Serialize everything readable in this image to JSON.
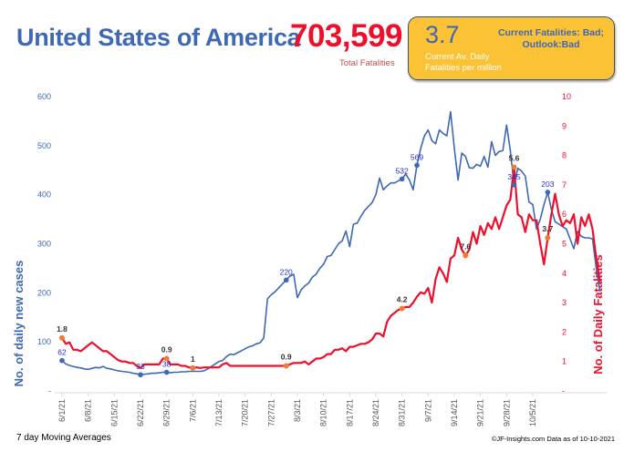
{
  "header": {
    "country": "United States of America",
    "total_fatalities": "703,599",
    "total_fatalities_label": "Total Fatalities"
  },
  "status_box": {
    "value": "3.7",
    "caption_line1": "Current Av. Daily",
    "caption_line2": "Fatalities per million",
    "outlook_line1": "Current Fatalities: Bad;",
    "outlook_line2": "Outlook:Bad"
  },
  "footer": {
    "left": "7 day Moving Averages",
    "right": "©JF-Insights.com  Data as of 10-10-2021"
  },
  "colors": {
    "cases": "#3d68b5",
    "fatalities": "#ee0f2c",
    "fatality_marker": "#ed7d31",
    "title": "#3d68b5",
    "total": "#ee0f2c",
    "status_bg": "#fcc236"
  },
  "chart_data": {
    "type": "line",
    "title": "",
    "x_start": "6/1/21",
    "x_end": "10/9/21",
    "x_tick_labels": [
      "6/1/21",
      "6/8/21",
      "6/15/21",
      "6/22/21",
      "6/29/21",
      "7/6/21",
      "7/13/21",
      "7/20/21",
      "7/27/21",
      "8/3/21",
      "8/10/21",
      "8/17/21",
      "8/24/21",
      "8/31/21",
      "9/7/21",
      "9/14/21",
      "9/21/21",
      "9/28/21",
      "10/5/21"
    ],
    "ylabel_left": "No. of daily new  cases",
    "ylabel_right": "No. of Daily Fatalities",
    "ylim_left": [
      0,
      600
    ],
    "ylim_right": [
      0,
      10
    ],
    "y_ticks_left": [
      "-",
      "100",
      "200",
      "300",
      "400",
      "500",
      "600"
    ],
    "y_ticks_right": [
      "-",
      "1",
      "2",
      "3",
      "4",
      "5",
      "6",
      "7",
      "8",
      "9",
      "10"
    ],
    "grid": false,
    "series": [
      {
        "name": "Daily new cases (7-day avg)",
        "axis": "left",
        "values": [
          62,
          55,
          52,
          50,
          48,
          47,
          45,
          44,
          46,
          48,
          47,
          50,
          46,
          45,
          43,
          41,
          40,
          39,
          38,
          36,
          35,
          33,
          34,
          35,
          36,
          36,
          37,
          38,
          38,
          37,
          38,
          38,
          39,
          39,
          40,
          40,
          40,
          40,
          41,
          45,
          50,
          55,
          60,
          62,
          70,
          75,
          74,
          78,
          82,
          86,
          90,
          92,
          96,
          98,
          108,
          188,
          196,
          202,
          210,
          218,
          226,
          234,
          238,
          190,
          206,
          214,
          220,
          232,
          238,
          250,
          258,
          274,
          276,
          288,
          300,
          306,
          326,
          294,
          340,
          342,
          356,
          368,
          376,
          384,
          400,
          434,
          410,
          418,
          424,
          424,
          428,
          432,
          442,
          430,
          410,
          460,
          494,
          520,
          532,
          510,
          504,
          532,
          525,
          520,
          569,
          495,
          430,
          485,
          478,
          455,
          454,
          462,
          458,
          478,
          456,
          508,
          480,
          488,
          490,
          542,
          490,
          420,
          454,
          448,
          438,
          385,
          380,
          330,
          350,
          380,
          405,
          370,
          345,
          340,
          335,
          330,
          310,
          290,
          325,
          315,
          312,
          312,
          310,
          250,
          203
        ],
        "annotations": [
          {
            "date": "6/1/21",
            "label": "62"
          },
          {
            "date": "6/22/21",
            "label": "33"
          },
          {
            "date": "6/29/21",
            "label": "38"
          },
          {
            "date": "7/31/21",
            "label": "220"
          },
          {
            "date": "8/31/21",
            "label": "532"
          },
          {
            "date": "9/4/21",
            "label": "569"
          },
          {
            "date": "9/30/21",
            "label": "345"
          },
          {
            "date": "10/9/21",
            "label": "203"
          }
        ]
      },
      {
        "name": "Daily fatalities (7-day avg)",
        "axis": "right",
        "values": [
          1.8,
          1.6,
          1.65,
          1.4,
          1.4,
          1.35,
          1.45,
          1.55,
          1.65,
          1.55,
          1.45,
          1.35,
          1.35,
          1.25,
          1.15,
          1.05,
          1.0,
          1.0,
          0.95,
          0.95,
          0.85,
          0.78,
          0.9,
          0.9,
          0.9,
          0.9,
          0.9,
          1.1,
          1.1,
          0.9,
          0.9,
          0.9,
          0.85,
          0.85,
          0.8,
          0.78,
          0.8,
          0.78,
          0.8,
          0.8,
          0.8,
          0.8,
          0.8,
          0.9,
          0.95,
          0.85,
          0.85,
          0.85,
          0.85,
          0.85,
          0.85,
          0.85,
          0.85,
          0.85,
          0.85,
          0.85,
          0.85,
          0.85,
          0.85,
          0.85,
          0.85,
          0.9,
          0.95,
          0.95,
          0.95,
          1.0,
          0.9,
          1.0,
          1.1,
          1.1,
          1.15,
          1.25,
          1.25,
          1.4,
          1.4,
          1.45,
          1.35,
          1.5,
          1.5,
          1.55,
          1.6,
          1.6,
          1.65,
          1.75,
          1.95,
          1.95,
          1.85,
          2.35,
          2.55,
          2.65,
          2.75,
          2.8,
          2.85,
          2.85,
          3.0,
          3.2,
          3.35,
          3.3,
          3.5,
          3.0,
          3.8,
          4.2,
          4.0,
          3.7,
          4.5,
          4.6,
          5.2,
          4.8,
          4.6,
          4.8,
          5.4,
          5.0,
          5.6,
          5.3,
          5.7,
          5.5,
          5.9,
          5.5,
          5.9,
          6.3,
          6.5,
          7.6,
          6.0,
          5.9,
          5.4,
          6.0,
          5.8,
          5.8,
          5.0,
          4.3,
          5.2,
          6.0,
          6.7,
          6.0,
          5.6,
          5.8,
          5.7,
          6.0,
          5.0,
          5.9,
          5.6,
          6.0,
          5.5,
          4.5,
          3.7
        ],
        "annotations": [
          {
            "date": "6/1/21",
            "label": "1.8"
          },
          {
            "date": "6/29/21",
            "label": "0.9"
          },
          {
            "date": "7/6/21",
            "label": "1"
          },
          {
            "date": "7/31/21",
            "label": "0.9"
          },
          {
            "date": "8/31/21",
            "label": "4.2"
          },
          {
            "date": "9/17/21",
            "label": "7.6"
          },
          {
            "date": "9/30/21",
            "label": "5.6"
          },
          {
            "date": "10/9/21",
            "label": "3.7"
          }
        ]
      }
    ]
  }
}
